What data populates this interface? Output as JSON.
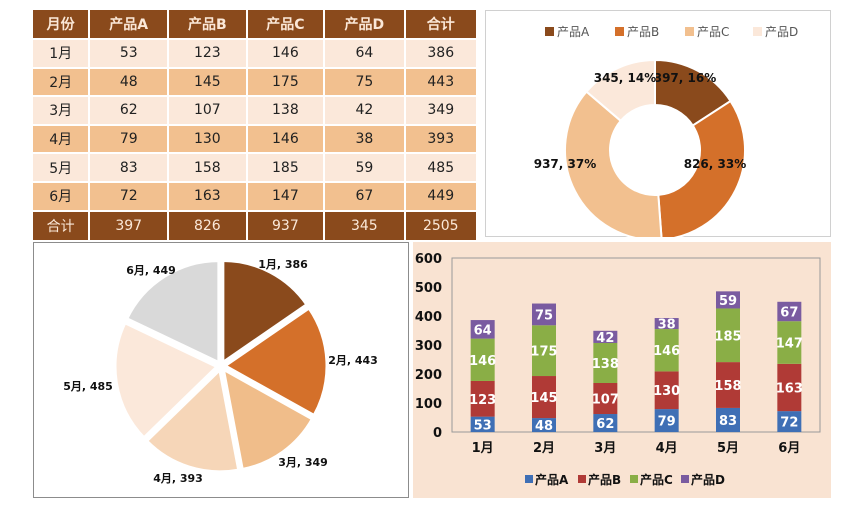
{
  "table": {
    "headers": [
      "月份",
      "产品A",
      "产品B",
      "产品C",
      "产品D",
      "合计"
    ],
    "rows": [
      [
        "1月",
        "53",
        "123",
        "146",
        "64",
        "386"
      ],
      [
        "2月",
        "48",
        "145",
        "175",
        "75",
        "443"
      ],
      [
        "3月",
        "62",
        "107",
        "138",
        "42",
        "349"
      ],
      [
        "4月",
        "79",
        "130",
        "146",
        "38",
        "393"
      ],
      [
        "5月",
        "83",
        "158",
        "185",
        "59",
        "485"
      ],
      [
        "6月",
        "72",
        "163",
        "147",
        "67",
        "449"
      ]
    ],
    "total": [
      "合计",
      "397",
      "826",
      "937",
      "345",
      "2505"
    ]
  },
  "chart_data": [
    {
      "type": "pie",
      "variant": "donut",
      "categories": [
        "产品A",
        "产品B",
        "产品C",
        "产品D"
      ],
      "values": [
        397,
        826,
        937,
        345
      ],
      "labels": [
        "397, 16%",
        "826, 33%",
        "937, 37%",
        "345, 14%"
      ],
      "colors": [
        "#8a4a1c",
        "#d4702a",
        "#f2c08f",
        "#fbe8da"
      ],
      "legend": "top"
    },
    {
      "type": "pie",
      "categories": [
        "1月",
        "2月",
        "3月",
        "4月",
        "5月",
        "6月"
      ],
      "values": [
        386,
        443,
        349,
        393,
        485,
        449
      ],
      "labels": [
        "1月, 386",
        "2月, 443",
        "3月, 349",
        "4月, 393",
        "5月, 485",
        "6月, 449"
      ],
      "colors": [
        "#8a4a1c",
        "#d4702a",
        "#f0bd8a",
        "#f6d6b8",
        "#fbe8da",
        "#d9d9d9"
      ]
    },
    {
      "type": "bar",
      "stacked": true,
      "categories": [
        "1月",
        "2月",
        "3月",
        "4月",
        "5月",
        "6月"
      ],
      "series": [
        {
          "name": "产品A",
          "values": [
            53,
            48,
            62,
            79,
            83,
            72
          ],
          "color": "#3f6fb5"
        },
        {
          "name": "产品B",
          "values": [
            123,
            145,
            107,
            130,
            158,
            163
          ],
          "color": "#b03a36"
        },
        {
          "name": "产品C",
          "values": [
            146,
            175,
            138,
            146,
            185,
            147
          ],
          "color": "#8aae46"
        },
        {
          "name": "产品D",
          "values": [
            64,
            75,
            42,
            38,
            59,
            67
          ],
          "color": "#7a5ba0"
        }
      ],
      "ylim": [
        0,
        600
      ],
      "yticks": [
        0,
        100,
        200,
        300,
        400,
        500,
        600
      ],
      "legend": "bottom",
      "background": "#f9e3d2"
    }
  ]
}
